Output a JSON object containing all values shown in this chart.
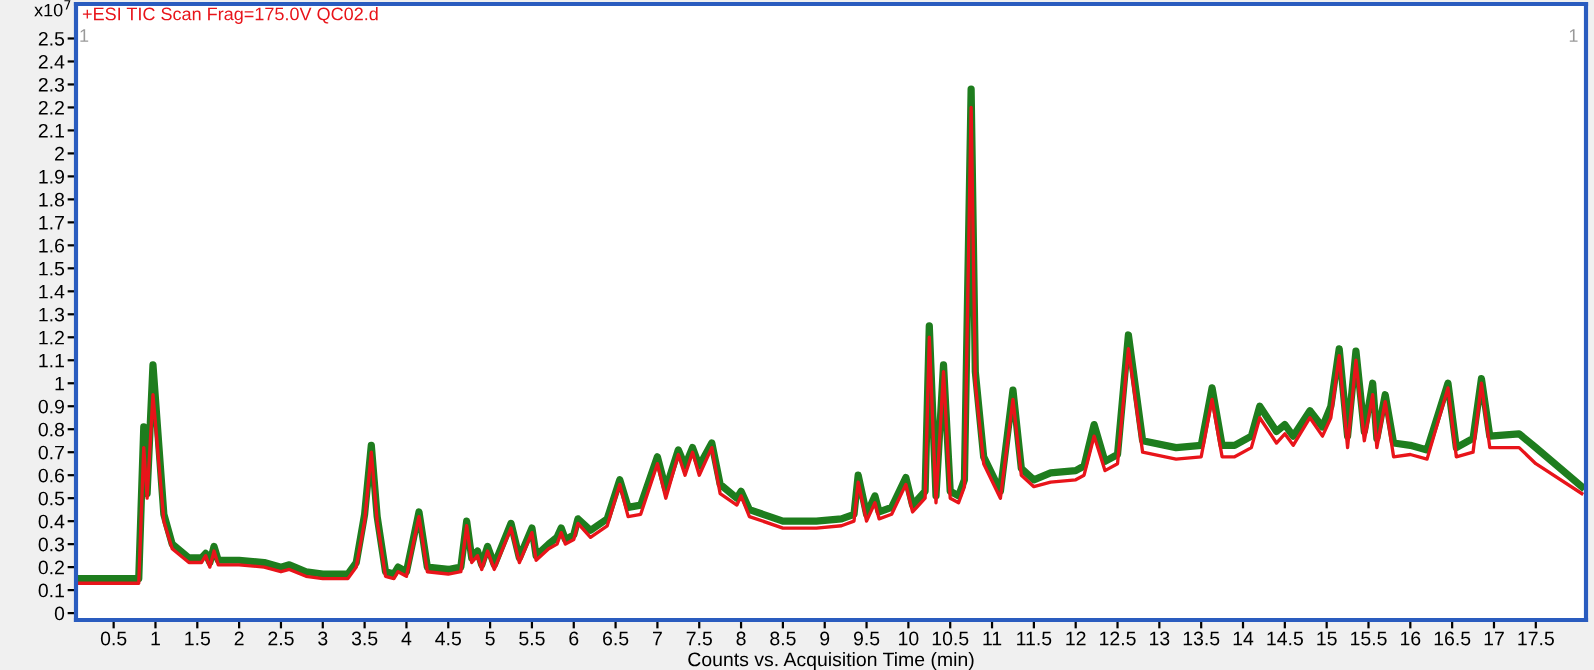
{
  "chart_data": {
    "type": "line",
    "xlabel": "Counts vs. Acquisition Time (min)",
    "annotations": [
      "x10$^{7}$",
      "+ESI TIC Scan Frag=175.0V QC02.d",
      "1",
      "1"
    ],
    "x": [
      0.05,
      0.8,
      0.86,
      0.9,
      0.97,
      1.1,
      1.2,
      1.4,
      1.55,
      1.6,
      1.65,
      1.7,
      1.75,
      2.0,
      2.3,
      2.5,
      2.6,
      2.8,
      3.0,
      3.3,
      3.4,
      3.5,
      3.58,
      3.65,
      3.75,
      3.85,
      3.9,
      4.0,
      4.15,
      4.25,
      4.5,
      4.65,
      4.72,
      4.78,
      4.85,
      4.9,
      4.97,
      5.05,
      5.25,
      5.35,
      5.5,
      5.55,
      5.7,
      5.8,
      5.85,
      5.9,
      6.0,
      6.05,
      6.2,
      6.4,
      6.55,
      6.65,
      6.8,
      7.0,
      7.1,
      7.25,
      7.33,
      7.42,
      7.5,
      7.65,
      7.75,
      7.95,
      8.0,
      8.1,
      8.5,
      8.9,
      9.2,
      9.35,
      9.4,
      9.5,
      9.6,
      9.65,
      9.8,
      9.97,
      10.05,
      10.2,
      10.25,
      10.33,
      10.42,
      10.5,
      10.6,
      10.67,
      10.75,
      10.8,
      10.9,
      11.1,
      11.25,
      11.35,
      11.5,
      11.7,
      12.0,
      12.1,
      12.22,
      12.35,
      12.5,
      12.63,
      12.8,
      13.2,
      13.5,
      13.63,
      13.75,
      13.9,
      14.1,
      14.2,
      14.4,
      14.5,
      14.6,
      14.8,
      14.95,
      15.05,
      15.15,
      15.25,
      15.35,
      15.45,
      15.55,
      15.6,
      15.7,
      15.8,
      16.0,
      16.2,
      16.45,
      16.55,
      16.75,
      16.85,
      16.95,
      17.3,
      17.5,
      18.05
    ],
    "series": [
      {
        "color": "#1e7d1e",
        "values": [
          0.15,
          0.15,
          0.81,
          0.52,
          1.08,
          0.43,
          0.3,
          0.24,
          0.24,
          0.26,
          0.22,
          0.29,
          0.23,
          0.23,
          0.22,
          0.2,
          0.21,
          0.18,
          0.17,
          0.17,
          0.22,
          0.43,
          0.73,
          0.42,
          0.18,
          0.17,
          0.2,
          0.18,
          0.44,
          0.2,
          0.19,
          0.2,
          0.4,
          0.24,
          0.27,
          0.21,
          0.29,
          0.21,
          0.39,
          0.24,
          0.37,
          0.25,
          0.3,
          0.33,
          0.37,
          0.32,
          0.34,
          0.41,
          0.36,
          0.41,
          0.58,
          0.46,
          0.47,
          0.68,
          0.54,
          0.71,
          0.64,
          0.72,
          0.64,
          0.74,
          0.56,
          0.5,
          0.53,
          0.45,
          0.4,
          0.4,
          0.41,
          0.43,
          0.6,
          0.43,
          0.51,
          0.44,
          0.46,
          0.59,
          0.47,
          0.53,
          1.25,
          0.51,
          1.08,
          0.53,
          0.51,
          0.58,
          2.28,
          1.05,
          0.68,
          0.53,
          0.97,
          0.63,
          0.58,
          0.61,
          0.62,
          0.64,
          0.82,
          0.66,
          0.69,
          1.21,
          0.75,
          0.72,
          0.73,
          0.98,
          0.73,
          0.73,
          0.77,
          0.9,
          0.79,
          0.82,
          0.77,
          0.88,
          0.81,
          0.9,
          1.15,
          0.77,
          1.14,
          0.79,
          1.0,
          0.76,
          0.95,
          0.74,
          0.73,
          0.71,
          1.0,
          0.72,
          0.76,
          1.02,
          0.77,
          0.78,
          0.72,
          0.55
        ]
      },
      {
        "color": "#e8141a",
        "values": [
          0.13,
          0.13,
          0.72,
          0.5,
          0.95,
          0.4,
          0.28,
          0.22,
          0.22,
          0.25,
          0.2,
          0.27,
          0.21,
          0.21,
          0.2,
          0.18,
          0.19,
          0.16,
          0.15,
          0.15,
          0.2,
          0.4,
          0.7,
          0.4,
          0.16,
          0.15,
          0.18,
          0.16,
          0.42,
          0.18,
          0.17,
          0.18,
          0.38,
          0.22,
          0.25,
          0.19,
          0.27,
          0.19,
          0.37,
          0.22,
          0.35,
          0.23,
          0.28,
          0.3,
          0.35,
          0.3,
          0.32,
          0.39,
          0.33,
          0.38,
          0.56,
          0.42,
          0.43,
          0.65,
          0.5,
          0.69,
          0.6,
          0.7,
          0.6,
          0.72,
          0.52,
          0.47,
          0.51,
          0.42,
          0.37,
          0.37,
          0.38,
          0.4,
          0.57,
          0.4,
          0.48,
          0.41,
          0.43,
          0.56,
          0.44,
          0.5,
          1.2,
          0.48,
          1.05,
          0.5,
          0.48,
          0.55,
          2.2,
          1.0,
          0.65,
          0.5,
          0.93,
          0.6,
          0.55,
          0.57,
          0.58,
          0.6,
          0.77,
          0.62,
          0.65,
          1.15,
          0.7,
          0.67,
          0.68,
          0.93,
          0.68,
          0.68,
          0.72,
          0.85,
          0.74,
          0.78,
          0.73,
          0.85,
          0.77,
          0.85,
          1.12,
          0.72,
          1.1,
          0.75,
          0.95,
          0.72,
          0.92,
          0.68,
          0.69,
          0.67,
          0.98,
          0.68,
          0.7,
          1.0,
          0.72,
          0.72,
          0.65,
          0.52
        ]
      }
    ],
    "xlim": [
      0.05,
      18.1
    ],
    "ylim": [
      -0.03,
      2.65
    ],
    "xticks": [
      0.5,
      1,
      1.5,
      2,
      2.5,
      3,
      3.5,
      4,
      4.5,
      5,
      5.5,
      6,
      6.5,
      7,
      7.5,
      8,
      8.5,
      9,
      9.5,
      10,
      10.5,
      11,
      11.5,
      12,
      12.5,
      13,
      13.5,
      14,
      14.5,
      15,
      15.5,
      16,
      16.5,
      17,
      17.5
    ],
    "yticks": [
      0,
      0.1,
      0.2,
      0.3,
      0.4,
      0.5,
      0.6,
      0.7,
      0.8,
      0.9,
      1,
      1.1,
      1.2,
      1.3,
      1.4,
      1.5,
      1.6,
      1.7,
      1.8,
      1.9,
      2,
      2.1,
      2.2,
      2.3,
      2.4,
      2.5
    ],
    "grid": false,
    "legend": false
  }
}
